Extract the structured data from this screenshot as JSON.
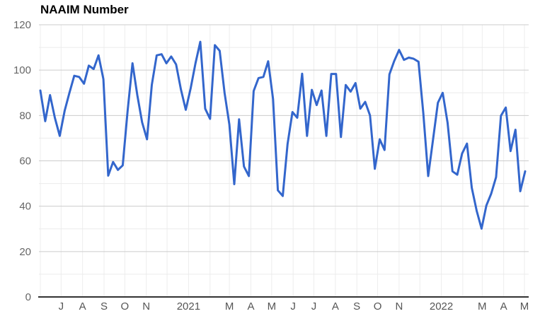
{
  "chart": {
    "title": "NAAIM Number"
  },
  "colors": {
    "line": "#3366cc",
    "grid_major": "#cccccc",
    "grid_minor": "#ebebeb",
    "grid_vertical": "#ededed",
    "axis": "#333333",
    "y_label": "#666666",
    "x_label": "#555555",
    "title": "#000000",
    "background": "#ffffff"
  },
  "chart_data": {
    "type": "line",
    "title": "NAAIM Number",
    "xlabel": "",
    "ylabel": "",
    "ylim": [
      0,
      120
    ],
    "y_major_ticks": [
      0,
      20,
      40,
      60,
      80,
      100,
      120
    ],
    "y_minor_ticks": [
      10,
      30,
      50,
      70,
      90,
      110
    ],
    "grid": "horizontal major + minor, vertical at every month",
    "legend_position": "none",
    "x_tick_labels_visible": [
      "J",
      "A",
      "S",
      "O",
      "N",
      "2021",
      "M",
      "A",
      "M",
      "J",
      "J",
      "A",
      "S",
      "O",
      "N",
      "2022",
      "M",
      "A",
      "M"
    ],
    "x_month_gridlines": [
      {
        "label": "",
        "day": 0
      },
      {
        "label": "J",
        "day": 30
      },
      {
        "label": "A",
        "day": 61
      },
      {
        "label": "S",
        "day": 92
      },
      {
        "label": "O",
        "day": 122
      },
      {
        "label": "N",
        "day": 153
      },
      {
        "label": "",
        "day": 183
      },
      {
        "label": "2021",
        "day": 214
      },
      {
        "label": "",
        "day": 245
      },
      {
        "label": "M",
        "day": 273
      },
      {
        "label": "A",
        "day": 304
      },
      {
        "label": "M",
        "day": 334
      },
      {
        "label": "J",
        "day": 365
      },
      {
        "label": "J",
        "day": 395
      },
      {
        "label": "A",
        "day": 426
      },
      {
        "label": "S",
        "day": 457
      },
      {
        "label": "O",
        "day": 487
      },
      {
        "label": "N",
        "day": 518
      },
      {
        "label": "",
        "day": 548
      },
      {
        "label": "2022",
        "day": 579
      },
      {
        "label": "",
        "day": 610
      },
      {
        "label": "M",
        "day": 638
      },
      {
        "label": "A",
        "day": 669
      },
      {
        "label": "M",
        "day": 699
      }
    ],
    "series": [
      {
        "name": "NAAIM Number",
        "cadence": "weekly",
        "values": [
          91,
          77.5,
          89,
          79,
          71,
          82,
          90,
          97.5,
          97,
          94,
          102,
          100.5,
          106.5,
          96,
          53.5,
          59.5,
          56,
          58,
          82,
          103,
          89,
          77,
          69.5,
          93.5,
          106.5,
          107,
          103,
          106,
          102.5,
          91.5,
          82.5,
          92,
          103,
          112.5,
          83,
          78.5,
          111,
          108.5,
          90,
          76,
          49.7,
          78.3,
          57.5,
          53.3,
          90.8,
          96.5,
          97,
          103.9,
          87.2,
          47,
          44.5,
          67.4,
          81.5,
          79,
          98.4,
          71,
          91.3,
          84.6,
          91,
          71,
          98.3,
          98.3,
          70.5,
          93.4,
          90.5,
          94.3,
          83,
          86,
          80,
          56.5,
          69.5,
          64.8,
          98.1,
          104,
          108.9,
          104.5,
          105.5,
          105,
          103.7,
          81,
          53.3,
          69.5,
          85.6,
          90,
          76.8,
          55.4,
          53.9,
          63.2,
          67.6,
          48.1,
          38,
          30.1,
          40.3,
          45.5,
          52.8,
          79.9,
          83.5,
          64.3,
          73.7,
          46.6,
          55.4
        ]
      }
    ]
  }
}
